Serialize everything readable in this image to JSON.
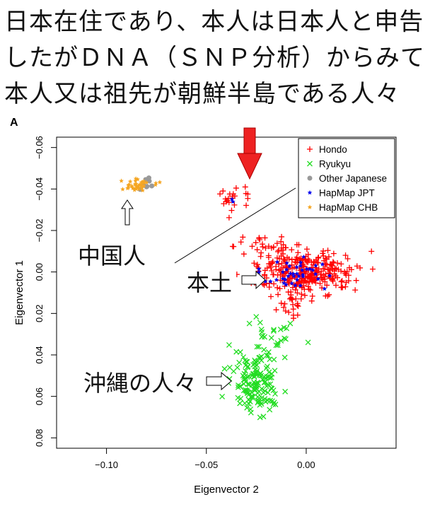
{
  "caption": {
    "lines": [
      "日本在住であり、本人は日本人と申告",
      "したがＤＮＡ（ＳＮＰ分析）からみて",
      "本人又は祖先が朝鮮半島である人々"
    ]
  },
  "chart_data": {
    "type": "scatter",
    "panel_label": "A",
    "xlabel": "Eigenvector 2",
    "ylabel": "Eigenvector 1",
    "xlim": [
      -0.125,
      0.045
    ],
    "ylim": [
      -0.065,
      0.085
    ],
    "y_inverted": true,
    "x_ticks": [
      -0.1,
      -0.05,
      0.0
    ],
    "x_tick_labels": [
      "−0.10",
      "−0.05",
      "0.00"
    ],
    "y_ticks": [
      -0.06,
      -0.04,
      -0.02,
      0.0,
      0.02,
      0.04,
      0.06,
      0.08
    ],
    "y_tick_labels": [
      "−0.06",
      "−0.04",
      "−0.02",
      "0.00",
      "0.02",
      "0.04",
      "0.06",
      "0.08"
    ],
    "grid": false,
    "legend_position": "top-right",
    "legend": [
      {
        "label": "Hondo",
        "color": "#ff0000",
        "marker": "+"
      },
      {
        "label": "Ryukyu",
        "color": "#22dd22",
        "marker": "x"
      },
      {
        "label": "Other Japanese",
        "color": "#999999",
        "marker": "circle"
      },
      {
        "label": "HapMap JPT",
        "color": "#0000ee",
        "marker": "*"
      },
      {
        "label": "HapMap CHB",
        "color": "#f5a623",
        "marker": "*"
      }
    ],
    "series": [
      {
        "name": "Hondo",
        "color": "#ff0000",
        "marker": "+",
        "clusters": [
          {
            "cx": 0.0,
            "cy": 0.0,
            "sx": 0.012,
            "sy": 0.005,
            "n": 300
          },
          {
            "cx": -0.008,
            "cy": 0.013,
            "sx": 0.006,
            "sy": 0.004,
            "n": 30
          },
          {
            "cx": -0.02,
            "cy": -0.012,
            "sx": 0.008,
            "sy": 0.004,
            "n": 30
          },
          {
            "cx": -0.036,
            "cy": -0.036,
            "sx": 0.006,
            "sy": 0.003,
            "n": 22
          }
        ]
      },
      {
        "name": "Ryukyu",
        "color": "#22dd22",
        "marker": "x",
        "clusters": [
          {
            "cx": -0.025,
            "cy": 0.053,
            "sx": 0.006,
            "sy": 0.007,
            "n": 150
          },
          {
            "cx": -0.018,
            "cy": 0.03,
            "sx": 0.006,
            "sy": 0.005,
            "n": 25
          }
        ]
      },
      {
        "name": "Other Japanese",
        "color": "#999999",
        "marker": "circle",
        "clusters": [
          {
            "cx": -0.08,
            "cy": -0.042,
            "sx": 0.002,
            "sy": 0.0015,
            "n": 8
          }
        ]
      },
      {
        "name": "HapMap JPT",
        "color": "#0000ee",
        "marker": "*",
        "clusters": [
          {
            "cx": -0.007,
            "cy": 0.0,
            "sx": 0.008,
            "sy": 0.004,
            "n": 40
          },
          {
            "cx": -0.037,
            "cy": -0.035,
            "sx": 0.001,
            "sy": 0.001,
            "n": 2
          }
        ]
      },
      {
        "name": "HapMap CHB",
        "color": "#f5a623",
        "marker": "*",
        "clusters": [
          {
            "cx": -0.084,
            "cy": -0.042,
            "sx": 0.005,
            "sy": 0.002,
            "n": 40
          }
        ]
      }
    ]
  },
  "annotations": {
    "china": "中国人",
    "hondo": "本土",
    "okinawa": "沖縄の人々"
  },
  "colors": {
    "arrow_fill": "#ee2222",
    "arrow_stroke": "#aa0000"
  }
}
